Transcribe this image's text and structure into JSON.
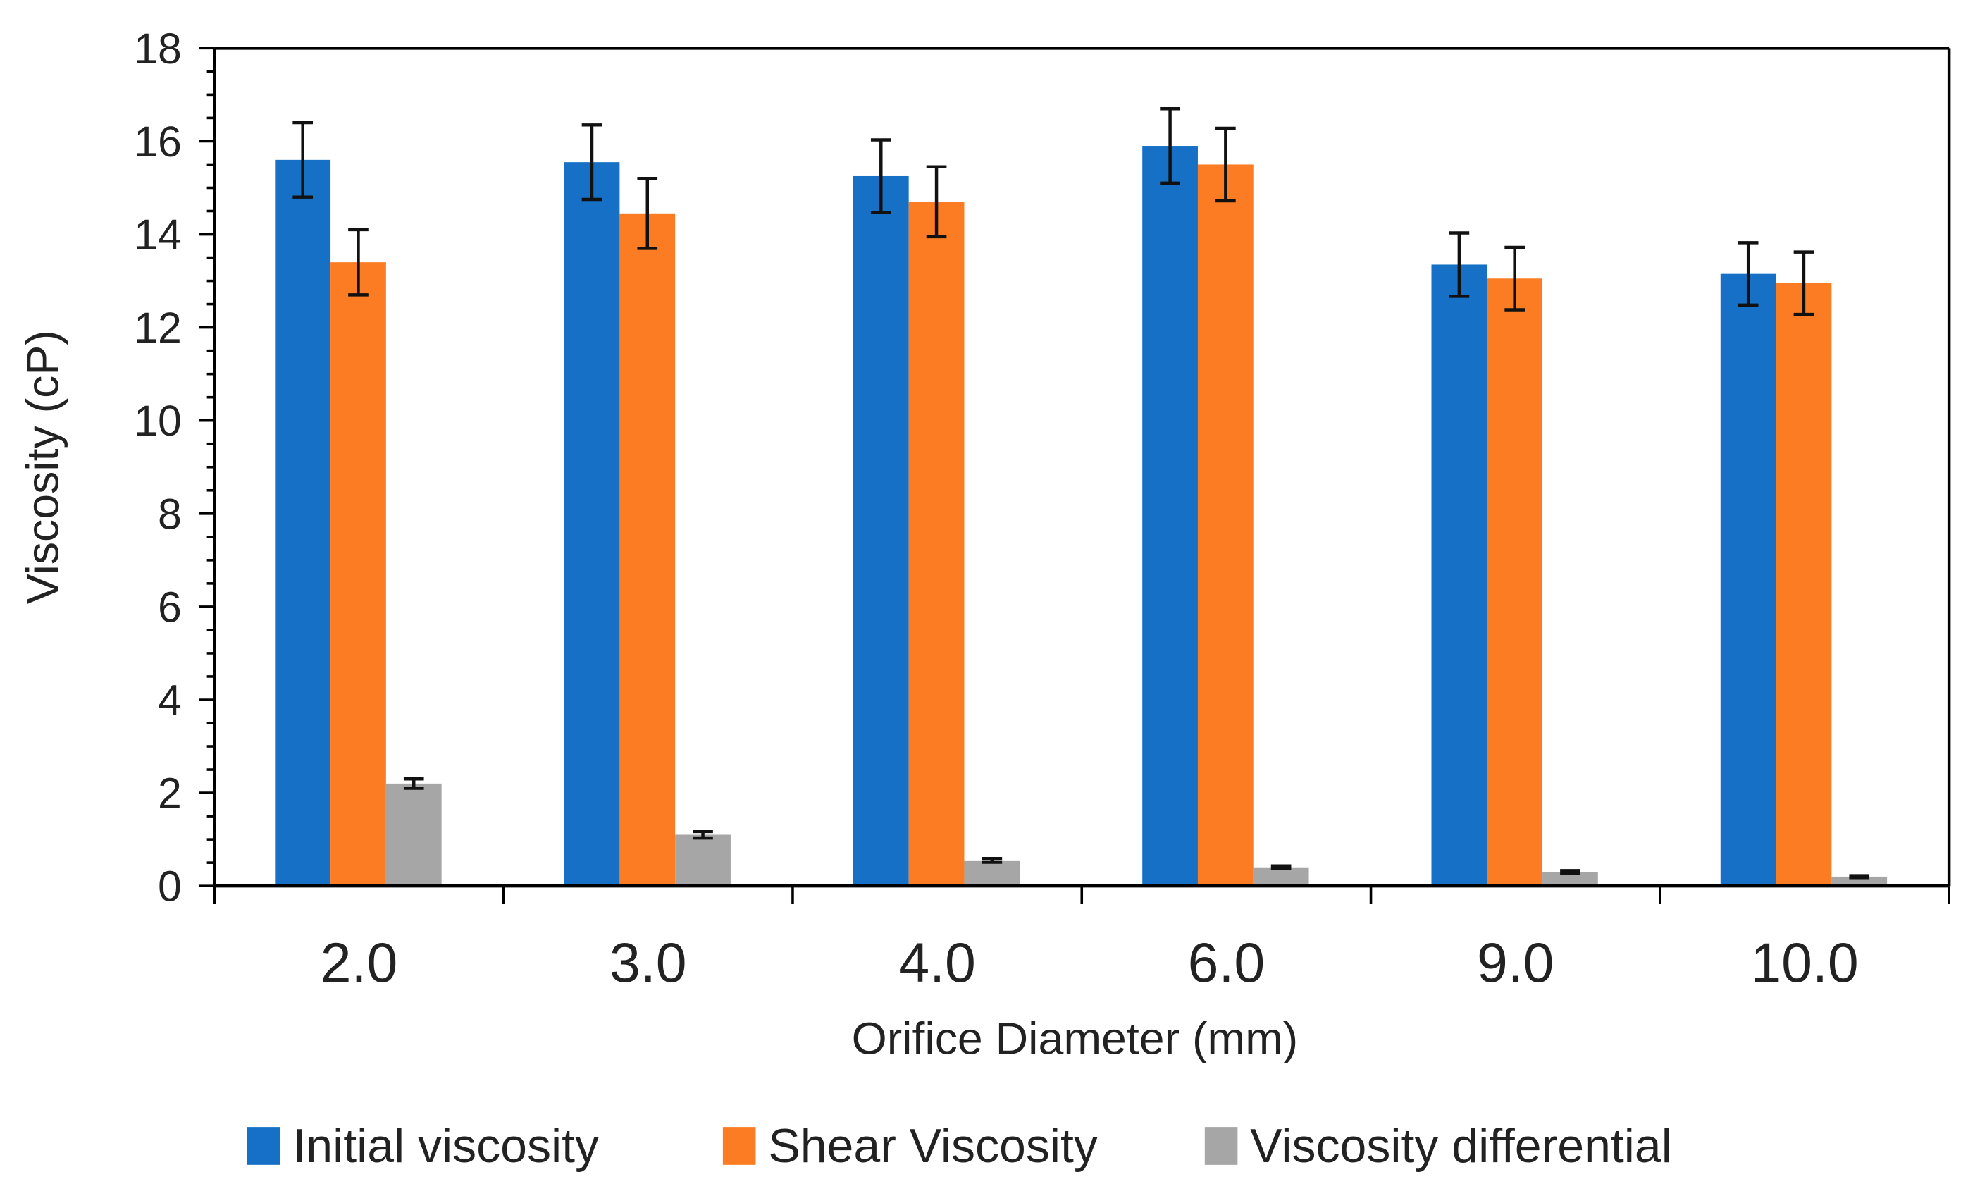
{
  "chart_data": {
    "type": "bar",
    "title": "",
    "xlabel": "Orifice Diameter (mm)",
    "ylabel": "Viscosity (cP)",
    "ylim": [
      0,
      18
    ],
    "yticks": [
      "0",
      "2",
      "4",
      "6",
      "8",
      "10",
      "12",
      "14",
      "16",
      "18"
    ],
    "grid": false,
    "legend_position": "bottom",
    "categories": [
      "2.0",
      "3.0",
      "4.0",
      "6.0",
      "9.0",
      "10.0"
    ],
    "series": [
      {
        "name": "Initial viscosity",
        "color": "#1671C6",
        "values": [
          15.6,
          15.55,
          15.25,
          15.9,
          13.35,
          13.15
        ],
        "errors": [
          0.8,
          0.8,
          0.78,
          0.8,
          0.68,
          0.67
        ]
      },
      {
        "name": "Shear Viscosity",
        "color": "#FB7C22",
        "values": [
          13.4,
          14.45,
          14.7,
          15.5,
          13.05,
          12.95
        ],
        "errors": [
          0.7,
          0.75,
          0.75,
          0.78,
          0.67,
          0.67
        ]
      },
      {
        "name": "Viscosity differential",
        "color": "#A6A6A6",
        "values": [
          2.2,
          1.1,
          0.55,
          0.4,
          0.3,
          0.2
        ],
        "errors": [
          0.1,
          0.07,
          0.04,
          0.03,
          0.03,
          0.02
        ]
      }
    ]
  }
}
